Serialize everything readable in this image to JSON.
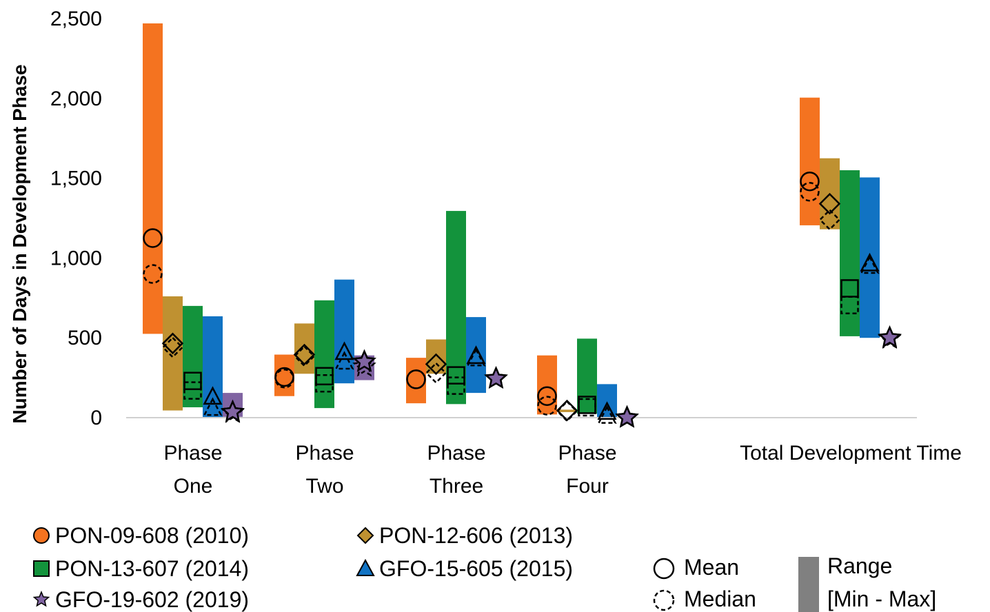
{
  "chart_data": {
    "type": "range-bar",
    "ylabel": "Number of Days in Development Phase",
    "ylim": [
      0,
      2500
    ],
    "yticks": [
      0,
      500,
      1000,
      1500,
      2000,
      2500
    ],
    "ytick_labels": [
      "0",
      "500",
      "1,000",
      "1,500",
      "2,000",
      "2,500"
    ],
    "grid": false,
    "categories": [
      {
        "lines": [
          "Phase",
          "One"
        ]
      },
      {
        "lines": [
          "Phase",
          "Two"
        ]
      },
      {
        "lines": [
          "Phase",
          "Three"
        ]
      },
      {
        "lines": [
          "Phase",
          "Four"
        ]
      },
      {
        "lines": [
          "Total Development Time"
        ]
      }
    ],
    "series": [
      {
        "name": "PON-09-608 (2010)",
        "color": "#f47320",
        "marker": "circle",
        "min": [
          525,
          135,
          90,
          20,
          1205
        ],
        "max": [
          2470,
          395,
          375,
          390,
          2005
        ],
        "mean": [
          1125,
          255,
          240,
          135,
          1480
        ],
        "median": [
          900,
          245,
          240,
          75,
          1415
        ]
      },
      {
        "name": "PON-12-606 (2013)",
        "color": "#bf9131",
        "marker": "diamond",
        "min": [
          45,
          275,
          275,
          35,
          1180
        ],
        "max": [
          760,
          590,
          490,
          50,
          1625
        ],
        "mean": [
          465,
          395,
          335,
          45,
          1340
        ],
        "median": [
          440,
          385,
          280,
          40,
          1240
        ]
      },
      {
        "name": "PON-13-607 (2014)",
        "color": "#13933c",
        "marker": "square",
        "min": [
          65,
          60,
          85,
          25,
          510
        ],
        "max": [
          700,
          735,
          1295,
          495,
          1550
        ],
        "mean": [
          230,
          260,
          265,
          80,
          810
        ],
        "median": [
          170,
          215,
          200,
          65,
          705
        ]
      },
      {
        "name": "GFO-15-605 (2015)",
        "color": "#1173c3",
        "marker": "triangle",
        "min": [
          0,
          215,
          155,
          0,
          500
        ],
        "max": [
          635,
          865,
          630,
          210,
          1505
        ],
        "mean": [
          130,
          410,
          385,
          35,
          965
        ],
        "median": [
          60,
          350,
          370,
          10,
          950
        ]
      },
      {
        "name": "GFO-19-602 (2019)",
        "color": "#8064a2",
        "marker": "star",
        "min": [
          5,
          235,
          null,
          null,
          null
        ],
        "max": [
          155,
          390,
          null,
          null,
          null
        ],
        "mean": [
          35,
          350,
          245,
          0,
          500
        ],
        "median": [
          30,
          320,
          245,
          0,
          495
        ]
      }
    ],
    "legend": {
      "placement": "bottom",
      "mean_label": "Mean",
      "median_label": "Median",
      "range_label_1": "Range",
      "range_label_2": "[Min - Max]"
    }
  }
}
